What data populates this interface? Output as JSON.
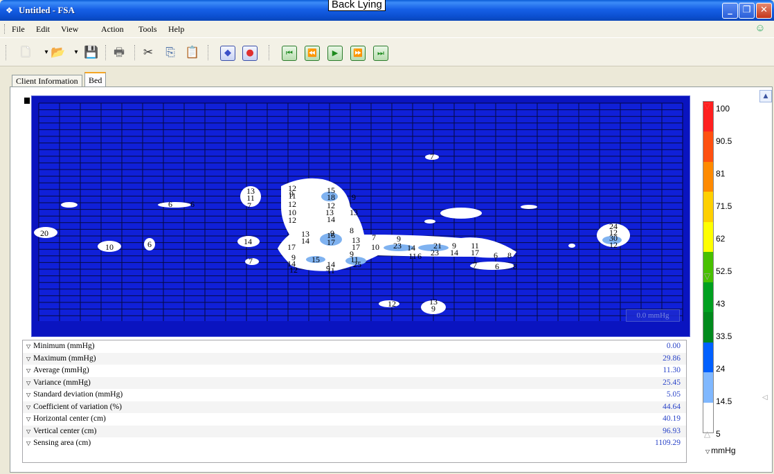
{
  "window": {
    "title": "Untitled - FSA",
    "caption": "Back Lying"
  },
  "menu": {
    "items": [
      {
        "label": "File",
        "accel": "F"
      },
      {
        "label": "Edit",
        "accel": "E"
      },
      {
        "label": "View",
        "accel": "V"
      },
      {
        "label": "Action",
        "accel": "A"
      },
      {
        "label": "Tools",
        "accel": "T"
      },
      {
        "label": "Help",
        "accel": "H"
      }
    ]
  },
  "toolbar": {
    "icons": [
      "new-file-icon",
      "open-folder-icon",
      "save-icon",
      "print-icon",
      "cut-icon",
      "copy-icon",
      "paste-icon",
      "diamond-icon",
      "record-icon",
      "first-frame-icon",
      "rewind-icon",
      "play-icon",
      "fast-forward-icon",
      "last-frame-icon"
    ]
  },
  "tabs": [
    {
      "label": "Client Information",
      "active": false
    },
    {
      "label": "Bed",
      "active": true
    }
  ],
  "pressure_map": {
    "readout": "0.0 mmHg",
    "labels": [
      {
        "text": "7"
      },
      {
        "text": "13"
      },
      {
        "text": "11"
      },
      {
        "text": "7"
      },
      {
        "text": "9"
      },
      {
        "text": "12"
      },
      {
        "text": "11"
      },
      {
        "text": "12"
      },
      {
        "text": "10"
      },
      {
        "text": "12"
      },
      {
        "text": "15"
      },
      {
        "text": "18"
      },
      {
        "text": "12"
      },
      {
        "text": "13"
      },
      {
        "text": "14"
      },
      {
        "text": "9"
      },
      {
        "text": "13"
      },
      {
        "text": "9"
      },
      {
        "text": "9"
      },
      {
        "text": "6"
      },
      {
        "text": "6"
      },
      {
        "text": "20"
      },
      {
        "text": "10"
      },
      {
        "text": "6"
      },
      {
        "text": "14"
      },
      {
        "text": "7"
      },
      {
        "text": "13"
      },
      {
        "text": "14"
      },
      {
        "text": "17"
      },
      {
        "text": "16"
      },
      {
        "text": "17"
      },
      {
        "text": "8"
      },
      {
        "text": "13"
      },
      {
        "text": "17"
      },
      {
        "text": "9"
      },
      {
        "text": "15"
      },
      {
        "text": "14"
      },
      {
        "text": "11"
      },
      {
        "text": "25"
      },
      {
        "text": "12"
      },
      {
        "text": "11"
      },
      {
        "text": "14"
      },
      {
        "text": "9"
      },
      {
        "text": "7"
      },
      {
        "text": "10"
      },
      {
        "text": "9"
      },
      {
        "text": "23"
      },
      {
        "text": "14"
      },
      {
        "text": "11"
      },
      {
        "text": "6"
      },
      {
        "text": "21"
      },
      {
        "text": "23"
      },
      {
        "text": "9"
      },
      {
        "text": "14"
      },
      {
        "text": "11"
      },
      {
        "text": "17"
      },
      {
        "text": "6"
      },
      {
        "text": "8"
      },
      {
        "text": "7"
      },
      {
        "text": "6"
      },
      {
        "text": "8"
      },
      {
        "text": "24"
      },
      {
        "text": "12"
      },
      {
        "text": "30"
      },
      {
        "text": "12"
      },
      {
        "text": "12"
      },
      {
        "text": "13"
      },
      {
        "text": "9"
      }
    ]
  },
  "stats": [
    {
      "label": "Minimum (mmHg)",
      "value": "0.00"
    },
    {
      "label": "Maximum (mmHg)",
      "value": "29.86"
    },
    {
      "label": "Average (mmHg)",
      "value": "11.30"
    },
    {
      "label": "Variance (mmHg)",
      "value": "25.45"
    },
    {
      "label": "Standard deviation (mmHg)",
      "value": "5.05"
    },
    {
      "label": "Coefficient of variation (%)",
      "value": "44.64"
    },
    {
      "label": "Horizontal center (cm)",
      "value": "40.19"
    },
    {
      "label": "Vertical center (cm)",
      "value": "96.93"
    },
    {
      "label": "Sensing area (cm)",
      "value": "1109.29"
    }
  ],
  "scale": {
    "labels": [
      "100",
      "90.5",
      "81",
      "71.5",
      "62",
      "52.5",
      "43",
      "33.5",
      "24",
      "14.5",
      "5"
    ],
    "unit": "mmHg",
    "colors": [
      "#ff2020",
      "#ff5010",
      "#ff8a00",
      "#ffd000",
      "#ffff00",
      "#48c000",
      "#00a020",
      "#008a1c",
      "#0060ff",
      "#80b8ff",
      "#ffffff"
    ]
  }
}
